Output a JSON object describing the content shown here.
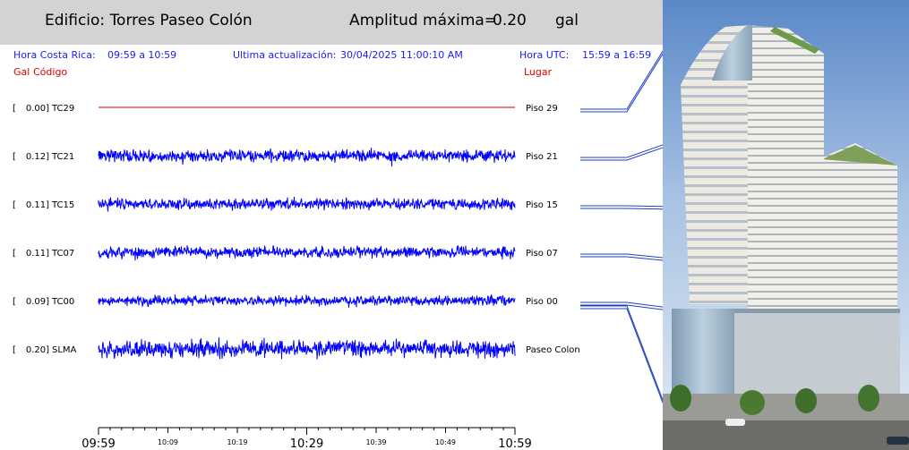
{
  "header": {
    "building_label": "Edificio: Torres Paseo Colón",
    "amp_label": "Amplitud máxima=",
    "amp_value": "0.20",
    "amp_unit": "gal"
  },
  "info": {
    "local_label": "Hora Costa Rica:",
    "local_range": "09:59 a 10:59",
    "update_label": "Ultima actualización:",
    "update_value": "30/04/2025 11:00:10 AM",
    "utc_label": "Hora UTC:",
    "utc_range": "15:59 a 16:59"
  },
  "columns": {
    "gal": "Gal",
    "code": "Código",
    "place": "Lugar"
  },
  "colors": {
    "trace": "#0000ff",
    "flat_trace": "#cc0000",
    "info_text": "#1a1aff",
    "column_text": "#e00000",
    "header_bg": "#d3d3d3"
  },
  "chart_data": {
    "type": "line",
    "x_unit": "time (Hora Costa Rica)",
    "xlim": [
      "09:59",
      "10:59"
    ],
    "xticks": [
      "09:59",
      "10:09",
      "10:19",
      "10:29",
      "10:39",
      "10:49",
      "10:59"
    ],
    "major_ticks": [
      "09:59",
      "10:29",
      "10:59"
    ],
    "series": [
      {
        "name": "TC29",
        "gal": "0.00",
        "location": "Piso 29",
        "amplitude": 0.0,
        "flat": true
      },
      {
        "name": "TC21",
        "gal": "0.12",
        "location": "Piso 21",
        "amplitude": 0.12
      },
      {
        "name": "TC15",
        "gal": "0.11",
        "location": "Piso 15",
        "amplitude": 0.11
      },
      {
        "name": "TC07",
        "gal": "0.11",
        "location": "Piso 07",
        "amplitude": 0.11
      },
      {
        "name": "TC00",
        "gal": "0.09",
        "location": "Piso 00",
        "amplitude": 0.09
      },
      {
        "name": "SLMA",
        "gal": "0.20",
        "location": "Paseo Colon",
        "amplitude": 0.2
      }
    ]
  }
}
